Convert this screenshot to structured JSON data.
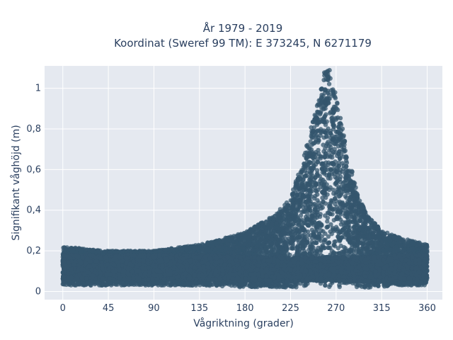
{
  "chart_data": {
    "type": "scatter",
    "title_line1": "År 1979 - 2019",
    "title_line2": "Koordinat (Sweref 99 TM): E 373245, N 6271179",
    "xlabel": "Vågriktning (grader)",
    "ylabel": "Signifikant våghöjd (m)",
    "xlim": [
      -18,
      375
    ],
    "ylim": [
      -0.04,
      1.11
    ],
    "x_ticks": [
      0,
      45,
      90,
      135,
      180,
      225,
      270,
      315,
      360
    ],
    "x_tick_labels": [
      "0",
      "45",
      "90",
      "135",
      "180",
      "225",
      "270",
      "315",
      "360"
    ],
    "y_ticks": [
      0,
      0.2,
      0.4,
      0.6,
      0.8,
      1
    ],
    "y_tick_labels": [
      "0",
      "0,2",
      "0,4",
      "0,6",
      "0,8",
      "1"
    ],
    "grid": true,
    "marker_color": "#34556d",
    "plot_background": "#e5e9f0",
    "envelope": {
      "description_points": [
        {
          "x": 0,
          "min": 0.03,
          "max": 0.22
        },
        {
          "x": 45,
          "min": 0.03,
          "max": 0.2
        },
        {
          "x": 90,
          "min": 0.03,
          "max": 0.2
        },
        {
          "x": 135,
          "min": 0.03,
          "max": 0.23
        },
        {
          "x": 180,
          "min": 0.02,
          "max": 0.29
        },
        {
          "x": 210,
          "min": 0.02,
          "max": 0.38
        },
        {
          "x": 225,
          "min": 0.02,
          "max": 0.46
        },
        {
          "x": 240,
          "min": 0.02,
          "max": 0.7
        },
        {
          "x": 250,
          "min": 0.02,
          "max": 0.9
        },
        {
          "x": 257,
          "min": 0.02,
          "max": 1.08
        },
        {
          "x": 263,
          "min": 0.02,
          "max": 1.1
        },
        {
          "x": 270,
          "min": 0.02,
          "max": 0.96
        },
        {
          "x": 280,
          "min": 0.02,
          "max": 0.72
        },
        {
          "x": 290,
          "min": 0.02,
          "max": 0.5
        },
        {
          "x": 300,
          "min": 0.02,
          "max": 0.38
        },
        {
          "x": 315,
          "min": 0.02,
          "max": 0.3
        },
        {
          "x": 330,
          "min": 0.03,
          "max": 0.27
        },
        {
          "x": 345,
          "min": 0.03,
          "max": 0.25
        },
        {
          "x": 360,
          "min": 0.03,
          "max": 0.23
        }
      ]
    }
  }
}
